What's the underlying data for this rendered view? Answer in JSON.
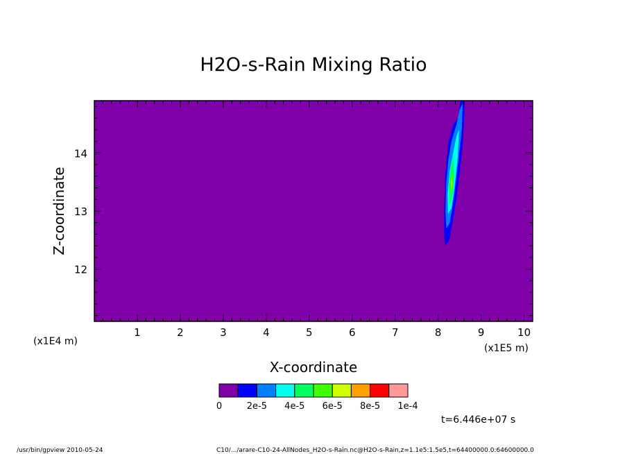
{
  "chart_data": {
    "type": "heatmap",
    "title": "H2O-s-Rain Mixing Ratio",
    "xlabel": "X-coordinate",
    "ylabel": "Z-coordinate",
    "x_unit_label": "(x1E5 m)",
    "y_unit_label": "(x1E4 m)",
    "xlim": [
      0,
      10.2
    ],
    "ylim": [
      11.1,
      14.9
    ],
    "x_ticks": [
      1,
      2,
      3,
      4,
      5,
      6,
      7,
      8,
      9,
      10
    ],
    "y_ticks": [
      12,
      13,
      14
    ],
    "background_value": 0,
    "colorbar": {
      "colors": [
        "#7f00a8",
        "#0000ff",
        "#0080ff",
        "#00ffee",
        "#00ff60",
        "#40ff00",
        "#d0ff00",
        "#ffa000",
        "#ff0000",
        "#ff9999"
      ],
      "labels": [
        "0",
        "2e-5",
        "4e-5",
        "6e-5",
        "8e-5",
        "1e-4"
      ]
    },
    "contours": [
      {
        "level": "1e-5",
        "color": "#0000ff",
        "points": [
          [
            8.16,
            12.4
          ],
          [
            8.26,
            12.5
          ],
          [
            8.36,
            12.9
          ],
          [
            8.48,
            13.5
          ],
          [
            8.58,
            14.2
          ],
          [
            8.62,
            14.9
          ],
          [
            8.52,
            14.9
          ],
          [
            8.46,
            14.6
          ],
          [
            8.36,
            14.5
          ],
          [
            8.24,
            14.2
          ],
          [
            8.2,
            13.9
          ],
          [
            8.16,
            13.6
          ],
          [
            8.14,
            13.0
          ],
          [
            8.14,
            12.6
          ]
        ]
      },
      {
        "level": "2e-5",
        "color": "#0080ff",
        "points": [
          [
            8.19,
            12.7
          ],
          [
            8.27,
            12.8
          ],
          [
            8.36,
            13.2
          ],
          [
            8.46,
            13.8
          ],
          [
            8.55,
            14.4
          ],
          [
            8.57,
            14.85
          ],
          [
            8.5,
            14.75
          ],
          [
            8.43,
            14.5
          ],
          [
            8.31,
            14.2
          ],
          [
            8.24,
            13.9
          ],
          [
            8.19,
            13.5
          ],
          [
            8.17,
            13.0
          ]
        ]
      },
      {
        "level": "4e-5",
        "color": "#00ffee",
        "points": [
          [
            8.23,
            12.95
          ],
          [
            8.31,
            13.05
          ],
          [
            8.38,
            13.4
          ],
          [
            8.45,
            13.9
          ],
          [
            8.49,
            14.4
          ],
          [
            8.43,
            14.3
          ],
          [
            8.35,
            14.0
          ],
          [
            8.27,
            13.7
          ],
          [
            8.22,
            13.3
          ]
        ]
      },
      {
        "level": "6e-5",
        "color": "#00ff60",
        "points": [
          [
            8.26,
            13.1
          ],
          [
            8.33,
            13.25
          ],
          [
            8.37,
            13.6
          ],
          [
            8.36,
            13.95
          ],
          [
            8.3,
            13.8
          ],
          [
            8.25,
            13.45
          ]
        ]
      },
      {
        "level": "7e-5",
        "color": "#40ff00",
        "points": [
          [
            8.3,
            13.3
          ],
          [
            8.34,
            13.4
          ],
          [
            8.34,
            13.65
          ],
          [
            8.3,
            13.6
          ],
          [
            8.29,
            13.45
          ]
        ]
      },
      {
        "level": "8e-5",
        "color": "#d0ff00",
        "points": [
          [
            8.31,
            13.38
          ],
          [
            8.33,
            13.45
          ],
          [
            8.32,
            13.55
          ],
          [
            8.3,
            13.5
          ]
        ]
      }
    ]
  },
  "time_label": "t=6.446e+07 s",
  "footer": {
    "left": "/usr/bin/gpview   2010-05-24",
    "right": "C10/.../arare-C10-24-AllNodes_H2O-s-Rain.nc@H2O-s-Rain,z=1.1e5:1.5e5,t=64400000.0:64600000.0"
  }
}
